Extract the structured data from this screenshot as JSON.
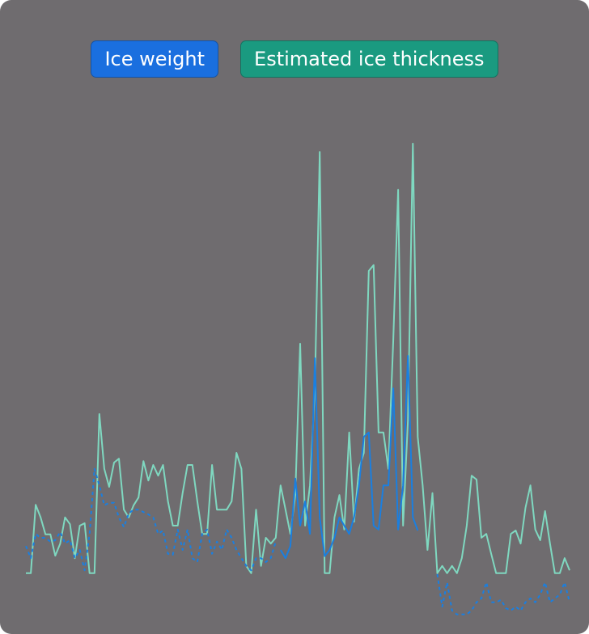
{
  "chart_data": {
    "type": "line",
    "ylim": [
      0,
      100
    ],
    "series": [
      {
        "name": "Estimated ice thickness",
        "color": "#7fd8c0",
        "button_color": "#1a9a80",
        "values": [
          10.2,
          10.2,
          24.3,
          21.7,
          18.2,
          18.2,
          13.8,
          16.3,
          21.7,
          20.3,
          13.3,
          20,
          20.5,
          10.2,
          10.2,
          43,
          31.7,
          28,
          33,
          33.8,
          23.3,
          21.7,
          24.2,
          25.8,
          33.3,
          29.3,
          32.5,
          30.3,
          32.5,
          25,
          20,
          20,
          26.7,
          32.5,
          32.5,
          25,
          18.3,
          18.3,
          32.5,
          23.3,
          23.3,
          23.3,
          25,
          35,
          31.7,
          11.7,
          10.2,
          23.3,
          11.7,
          17.5,
          16.3,
          17.5,
          28.3,
          23.3,
          18.3,
          26.3,
          57.5,
          20,
          28.3,
          48.3,
          97,
          10.2,
          10.2,
          21.7,
          26.3,
          19.2,
          39.2,
          20.8,
          31.7,
          35,
          72.5,
          73.7,
          39.2,
          39.2,
          31.7,
          58.3,
          89.2,
          20,
          41.7,
          98.7,
          38.3,
          28.3,
          15,
          26.7,
          10.2,
          11.7,
          10.2,
          11.7,
          10.2,
          13.3,
          20,
          30.3,
          29.5,
          17.5,
          18.3,
          14.2,
          10.2,
          10.2,
          10.2,
          18.3,
          19,
          16.3,
          23.7,
          28.3,
          19.2,
          17,
          23,
          16.3,
          10.2,
          10.2,
          13.3,
          10.8
        ]
      },
      {
        "name": "Ice weight",
        "color": "#1a7fe0",
        "button_color": "#1a6fdf",
        "dashed": true,
        "solid_range": [
          52,
          80
        ],
        "values": [
          15.8,
          13.3,
          18.3,
          17.5,
          17.5,
          16.7,
          17,
          18.7,
          16.3,
          17,
          13.3,
          15,
          10.8,
          18.3,
          31.7,
          28.3,
          24.2,
          24.7,
          24.7,
          21.7,
          19.7,
          22.5,
          23.3,
          23.3,
          22.8,
          22.3,
          21.7,
          18.3,
          19,
          14.2,
          14,
          19.2,
          15,
          19.2,
          13.3,
          12.5,
          18.3,
          19.2,
          14.2,
          16.7,
          15,
          19.2,
          17.5,
          15,
          13.3,
          11.7,
          10.8,
          13.3,
          13.3,
          12.5,
          13.3,
          16.7,
          15,
          13.3,
          15.8,
          29.7,
          20,
          25,
          18.3,
          54.5,
          21.7,
          13.7,
          15,
          17.5,
          21.7,
          20,
          18.3,
          21.7,
          28.3,
          38.3,
          39.2,
          20,
          19.2,
          28.3,
          28.3,
          48.3,
          19.2,
          28.3,
          55,
          21.7,
          19,
          null,
          null,
          null,
          10,
          3.3,
          8.3,
          2.5,
          1.7,
          1.7,
          1.7,
          2.5,
          4.2,
          5,
          8.3,
          4.2,
          4.2,
          4.7,
          3,
          2.5,
          3.3,
          2.5,
          4.2,
          5,
          4.2,
          5.8,
          8.3,
          4.2,
          5,
          5.8,
          8.3,
          4.2
        ]
      }
    ]
  }
}
